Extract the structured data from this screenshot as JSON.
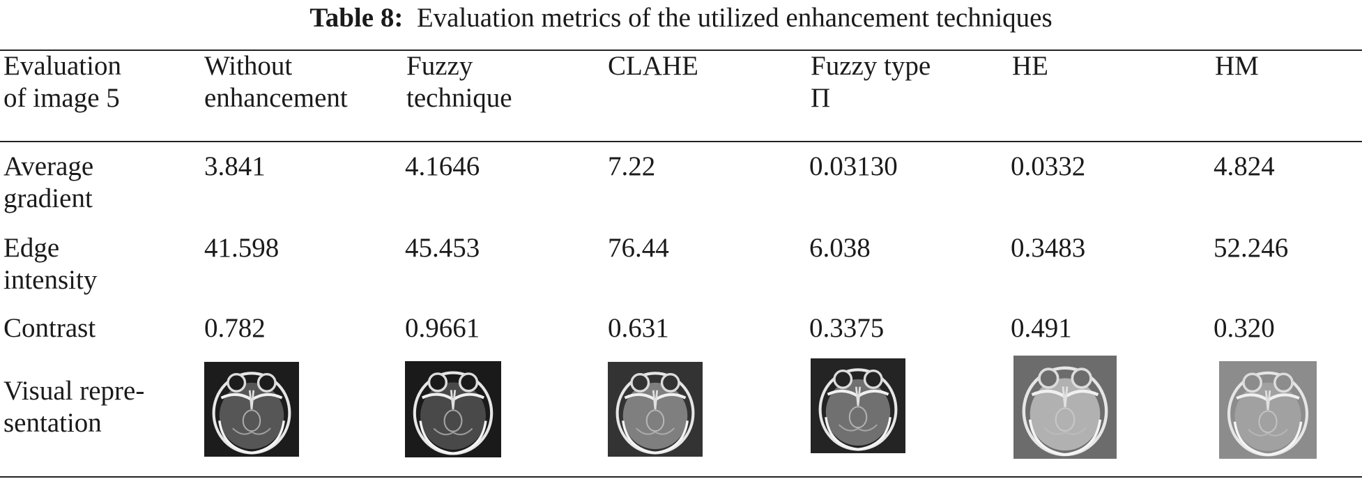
{
  "caption": {
    "label": "Table 8:",
    "text": "Evaluation metrics of the utilized enhancement techniques"
  },
  "header": {
    "col0": [
      "Evaluation",
      "of image 5"
    ],
    "col1": [
      "Without",
      "enhancement"
    ],
    "col2": [
      "Fuzzy",
      "technique"
    ],
    "col3": [
      "CLAHE"
    ],
    "col4": [
      "Fuzzy type",
      "Π"
    ],
    "col5": [
      "HE"
    ],
    "col6": [
      "HM"
    ]
  },
  "rows": [
    {
      "label": [
        "Average",
        "gradient"
      ],
      "values": [
        "3.841",
        "4.1646",
        "7.22",
        "0.03130",
        "0.0332",
        "4.824"
      ]
    },
    {
      "label": [
        "Edge",
        "intensity"
      ],
      "values": [
        "41.598",
        "45.453",
        "76.44",
        "6.038",
        "0.3483",
        "52.246"
      ]
    },
    {
      "label": [
        "Contrast"
      ],
      "values": [
        "0.782",
        "0.9661",
        "0.631",
        "0.3375",
        "0.491",
        "0.320"
      ]
    }
  ],
  "visual_row": {
    "label": [
      "Visual repre-",
      "sentation"
    ],
    "images": [
      {
        "name": "brain-mri-without-enhancement",
        "bg": "#1c1c1c",
        "tone": "#6a6a6a"
      },
      {
        "name": "brain-mri-fuzzy-technique",
        "bg": "#1a1a1a",
        "tone": "#5a5a5a"
      },
      {
        "name": "brain-mri-clahe",
        "bg": "#333333",
        "tone": "#9a9a9a"
      },
      {
        "name": "brain-mri-fuzzy-type-pi",
        "bg": "#242424",
        "tone": "#8a8a8a"
      },
      {
        "name": "brain-mri-he",
        "bg": "#6c6c6c",
        "tone": "#c8c8c8"
      },
      {
        "name": "brain-mri-hm",
        "bg": "#8c8c8c",
        "tone": "#a8a8a8"
      }
    ]
  }
}
